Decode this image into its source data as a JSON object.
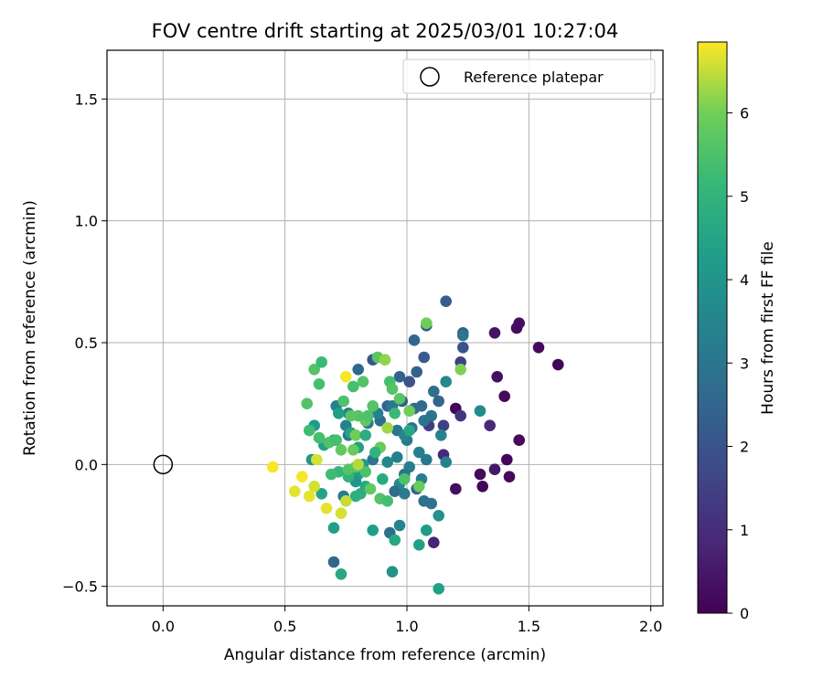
{
  "chart_data": {
    "type": "scatter",
    "title": "FOV centre drift starting at 2025/03/01 10:27:04",
    "xlabel": "Angular distance from reference (arcmin)",
    "ylabel": "Rotation from reference (arcmin)",
    "xlim": [
      -0.23,
      2.05
    ],
    "ylim": [
      -0.58,
      1.7
    ],
    "xticks": [
      0.0,
      0.5,
      1.0,
      1.5,
      2.0
    ],
    "xtick_labels": [
      "0.0",
      "0.5",
      "1.0",
      "1.5",
      "2.0"
    ],
    "yticks": [
      -0.5,
      0.0,
      0.5,
      1.0,
      1.5
    ],
    "ytick_labels": [
      "−0.5",
      "0.0",
      "0.5",
      "1.0",
      "1.5"
    ],
    "grid": true,
    "legend": {
      "position": "top-right",
      "entries": [
        "Reference platepar"
      ]
    },
    "reference_point": {
      "x": 0.0,
      "y": 0.0,
      "marker": "open-circle"
    },
    "colorbar": {
      "label": "Hours from first FF file",
      "min": 0,
      "max": 6.85,
      "ticks": [
        0,
        1,
        2,
        3,
        4,
        5,
        6
      ],
      "tick_labels": [
        "0",
        "1",
        "2",
        "3",
        "4",
        "5",
        "6"
      ],
      "colormap": "viridis"
    },
    "points": [
      [
        1.62,
        0.41,
        0.1
      ],
      [
        1.54,
        0.48,
        0.2
      ],
      [
        1.46,
        0.58,
        0.3
      ],
      [
        1.45,
        0.56,
        0.25
      ],
      [
        1.36,
        0.54,
        0.4
      ],
      [
        1.37,
        0.36,
        0.3
      ],
      [
        1.4,
        0.28,
        0.2
      ],
      [
        1.46,
        0.1,
        0.15
      ],
      [
        1.41,
        0.02,
        0.1
      ],
      [
        1.42,
        -0.05,
        0.2
      ],
      [
        1.36,
        -0.02,
        0.5
      ],
      [
        1.31,
        -0.09,
        0.1
      ],
      [
        1.3,
        -0.04,
        0.2
      ],
      [
        1.2,
        0.23,
        0.1
      ],
      [
        1.2,
        -0.1,
        0.3
      ],
      [
        1.34,
        0.16,
        0.9
      ],
      [
        1.22,
        0.2,
        1.2
      ],
      [
        1.15,
        0.04,
        0.9
      ],
      [
        1.15,
        0.16,
        1.5
      ],
      [
        1.11,
        -0.32,
        0.8
      ],
      [
        1.09,
        0.16,
        1.4
      ],
      [
        1.22,
        0.42,
        1.5
      ],
      [
        1.16,
        0.67,
        2.3
      ],
      [
        1.23,
        0.54,
        2.3
      ],
      [
        1.23,
        0.48,
        2.0
      ],
      [
        1.08,
        0.57,
        2.1
      ],
      [
        1.03,
        0.51,
        2.5
      ],
      [
        1.07,
        0.44,
        2.2
      ],
      [
        1.04,
        0.38,
        2.4
      ],
      [
        1.01,
        0.34,
        2.0
      ],
      [
        0.97,
        0.36,
        2.4
      ],
      [
        0.86,
        0.43,
        2.1
      ],
      [
        0.8,
        0.39,
        2.6
      ],
      [
        0.92,
        0.24,
        2.5
      ],
      [
        0.98,
        0.26,
        2.3
      ],
      [
        1.03,
        0.23,
        2.6
      ],
      [
        1.06,
        0.24,
        2.7
      ],
      [
        1.11,
        0.3,
        2.8
      ],
      [
        1.13,
        0.26,
        2.5
      ],
      [
        1.1,
        0.2,
        2.9
      ],
      [
        1.07,
        0.18,
        3.0
      ],
      [
        1.02,
        0.15,
        2.8
      ],
      [
        0.96,
        0.14,
        3.0
      ],
      [
        0.89,
        0.18,
        2.7
      ],
      [
        0.84,
        0.17,
        3.2
      ],
      [
        0.88,
        0.21,
        3.4
      ],
      [
        0.94,
        0.24,
        3.1
      ],
      [
        1.0,
        0.1,
        3.2
      ],
      [
        0.99,
        0.12,
        3.5
      ],
      [
        1.01,
        -0.01,
        3.3
      ],
      [
        0.99,
        -0.04,
        3.0
      ],
      [
        0.97,
        -0.08,
        3.6
      ],
      [
        0.95,
        -0.11,
        2.7
      ],
      [
        0.99,
        -0.12,
        3.2
      ],
      [
        1.04,
        -0.1,
        2.5
      ],
      [
        1.07,
        -0.15,
        2.8
      ],
      [
        1.1,
        -0.16,
        2.9
      ],
      [
        1.06,
        -0.06,
        3.3
      ],
      [
        1.05,
        0.05,
        3.4
      ],
      [
        1.08,
        0.02,
        3.1
      ],
      [
        1.16,
        0.01,
        3.4
      ],
      [
        1.14,
        0.12,
        3.5
      ],
      [
        1.16,
        0.34,
        3.6
      ],
      [
        1.3,
        0.22,
        3.7
      ],
      [
        1.23,
        0.53,
        3.0
      ],
      [
        0.76,
        0.12,
        3.1
      ],
      [
        0.75,
        0.16,
        3.4
      ],
      [
        0.76,
        0.21,
        3.3
      ],
      [
        0.71,
        0.24,
        3.3
      ],
      [
        0.74,
        -0.13,
        3.2
      ],
      [
        0.7,
        -0.4,
        2.6
      ],
      [
        0.86,
        0.02,
        3.0
      ],
      [
        0.92,
        0.01,
        3.6
      ],
      [
        0.96,
        0.03,
        3.4
      ],
      [
        0.93,
        -0.28,
        2.8
      ],
      [
        0.97,
        -0.25,
        3.5
      ],
      [
        1.13,
        -0.21,
        3.9
      ],
      [
        1.08,
        -0.27,
        4.2
      ],
      [
        1.05,
        -0.33,
        4.4
      ],
      [
        1.13,
        -0.51,
        4.4
      ],
      [
        0.94,
        -0.44,
        3.9
      ],
      [
        0.95,
        -0.31,
        4.6
      ],
      [
        0.86,
        -0.27,
        4.3
      ],
      [
        0.73,
        -0.45,
        4.6
      ],
      [
        0.7,
        -0.26,
        4.3
      ],
      [
        0.65,
        -0.12,
        4.5
      ],
      [
        0.61,
        0.02,
        4.0
      ],
      [
        0.62,
        0.16,
        4.2
      ],
      [
        0.66,
        0.08,
        4.4
      ],
      [
        0.7,
        0.1,
        4.6
      ],
      [
        0.72,
        0.21,
        4.3
      ],
      [
        0.77,
        0.13,
        4.5
      ],
      [
        0.8,
        0.07,
        4.4
      ],
      [
        0.82,
        0.0,
        4.1
      ],
      [
        0.8,
        -0.04,
        4.3
      ],
      [
        0.79,
        -0.07,
        4.0
      ],
      [
        0.83,
        -0.09,
        4.6
      ],
      [
        0.81,
        -0.12,
        4.8
      ],
      [
        0.79,
        -0.13,
        4.9
      ],
      [
        0.76,
        -0.05,
        5.0
      ],
      [
        0.72,
        -0.03,
        5.1
      ],
      [
        0.69,
        -0.04,
        5.3
      ],
      [
        0.68,
        0.09,
        5.5
      ],
      [
        0.64,
        0.11,
        5.4
      ],
      [
        0.6,
        0.14,
        5.3
      ],
      [
        0.62,
        0.39,
        5.6
      ],
      [
        0.65,
        0.42,
        5.2
      ],
      [
        0.64,
        0.33,
        5.4
      ],
      [
        0.59,
        0.25,
        5.6
      ],
      [
        0.74,
        0.26,
        5.5
      ],
      [
        0.78,
        0.32,
        5.4
      ],
      [
        0.82,
        0.34,
        5.6
      ],
      [
        0.88,
        0.44,
        5.7
      ],
      [
        0.91,
        0.43,
        6.2
      ],
      [
        0.93,
        0.34,
        5.4
      ],
      [
        0.94,
        0.31,
        5.6
      ],
      [
        0.97,
        0.27,
        5.7
      ],
      [
        1.01,
        0.22,
        6.0
      ],
      [
        0.86,
        0.24,
        5.6
      ],
      [
        0.83,
        0.18,
        5.8
      ],
      [
        0.84,
        0.2,
        5.5
      ],
      [
        0.8,
        0.2,
        5.6
      ],
      [
        0.77,
        0.2,
        5.7
      ],
      [
        0.79,
        0.12,
        6.0
      ],
      [
        0.78,
        0.06,
        5.9
      ],
      [
        0.73,
        0.06,
        5.8
      ],
      [
        0.71,
        0.1,
        5.4
      ],
      [
        0.76,
        -0.02,
        5.6
      ],
      [
        0.79,
        -0.01,
        5.7
      ],
      [
        0.83,
        -0.03,
        5.5
      ],
      [
        0.85,
        -0.1,
        5.8
      ],
      [
        0.89,
        -0.14,
        5.6
      ],
      [
        0.92,
        -0.15,
        5.4
      ],
      [
        0.99,
        -0.06,
        5.5
      ],
      [
        1.05,
        -0.09,
        5.9
      ],
      [
        1.08,
        0.58,
        6.0
      ],
      [
        1.22,
        0.39,
        6.1
      ],
      [
        0.89,
        0.07,
        5.9
      ],
      [
        0.92,
        0.15,
        6.3
      ],
      [
        0.8,
        0.0,
        6.4
      ],
      [
        0.75,
        -0.15,
        6.5
      ],
      [
        0.73,
        -0.2,
        6.6
      ],
      [
        0.67,
        -0.18,
        6.7
      ],
      [
        0.62,
        -0.09,
        6.6
      ],
      [
        0.6,
        -0.13,
        6.7
      ],
      [
        0.57,
        -0.05,
        6.8
      ],
      [
        0.54,
        -0.11,
        6.7
      ],
      [
        0.45,
        -0.01,
        6.8
      ],
      [
        0.63,
        0.02,
        6.6
      ],
      [
        0.75,
        0.36,
        6.8
      ],
      [
        0.87,
        0.05,
        5.0
      ],
      [
        0.9,
        -0.06,
        4.7
      ],
      [
        0.83,
        0.12,
        4.8
      ],
      [
        0.95,
        0.21,
        5.2
      ],
      [
        1.01,
        0.14,
        4.6
      ]
    ]
  }
}
